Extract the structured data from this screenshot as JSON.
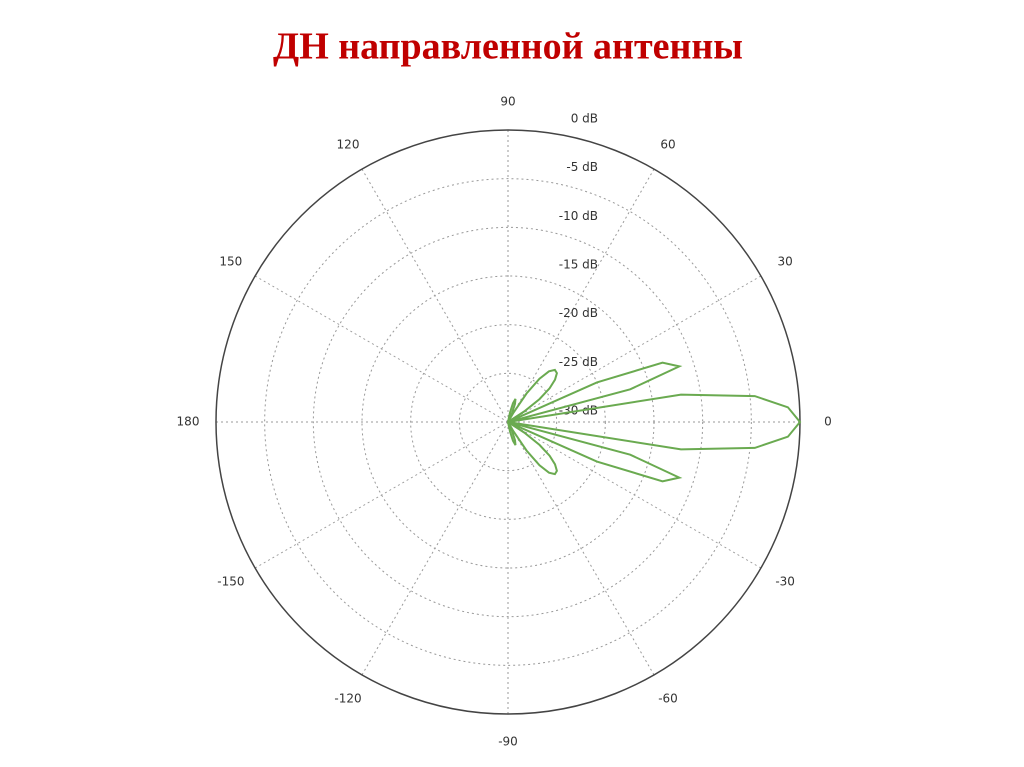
{
  "chart_data": {
    "type": "polar",
    "title": "ДН направленной антенны",
    "rlim": [
      -30,
      0
    ],
    "rticks": [
      {
        "value": 0,
        "label": "0 dB"
      },
      {
        "value": -5,
        "label": "-5 dB"
      },
      {
        "value": -10,
        "label": "-10 dB"
      },
      {
        "value": -15,
        "label": "-15 dB"
      },
      {
        "value": -20,
        "label": "-20 dB"
      },
      {
        "value": -25,
        "label": "-25 dB"
      },
      {
        "value": -30,
        "label": "-30 dB"
      }
    ],
    "thetaticks": [
      0,
      30,
      60,
      90,
      120,
      150,
      180,
      -150,
      -120,
      -90,
      -60,
      -30
    ],
    "grid": true,
    "x": [
      -90,
      -87,
      -84,
      -81,
      -78,
      -75,
      -72,
      -69,
      -66,
      -63,
      -60,
      -57,
      -54,
      -51,
      -48,
      -45,
      -42,
      -39,
      -36,
      -33,
      -30,
      -27,
      -24,
      -21,
      -18,
      -15,
      -12,
      -9,
      -6,
      -3,
      0,
      3,
      6,
      9,
      12,
      15,
      18,
      21,
      24,
      27,
      30,
      33,
      36,
      39,
      42,
      45,
      48,
      51,
      54,
      57,
      60,
      63,
      66,
      69,
      72,
      75,
      78,
      81,
      84,
      87,
      90
    ],
    "series": [
      {
        "color": "#6aaa50",
        "values": [
          -30,
          -30,
          -30,
          -30,
          -29,
          -28,
          -27.5,
          -28,
          -29,
          -30,
          -29,
          -26.5,
          -24.5,
          -23.3,
          -22.8,
          -22.9,
          -23.5,
          -24.5,
          -26,
          -28,
          -30,
          -30,
          -20,
          -13,
          -11.5,
          -17,
          -30,
          -12,
          -4.5,
          -1.2,
          0,
          -1.2,
          -4.5,
          -12,
          -30,
          -17,
          -11.5,
          -13,
          -20,
          -30,
          -30,
          -28,
          -26,
          -24.5,
          -23.5,
          -22.9,
          -22.8,
          -23.3,
          -24.5,
          -26.5,
          -29,
          -30,
          -29,
          -28,
          -27.5,
          -28,
          -29,
          -30,
          -30,
          -30,
          -30
        ]
      }
    ]
  }
}
